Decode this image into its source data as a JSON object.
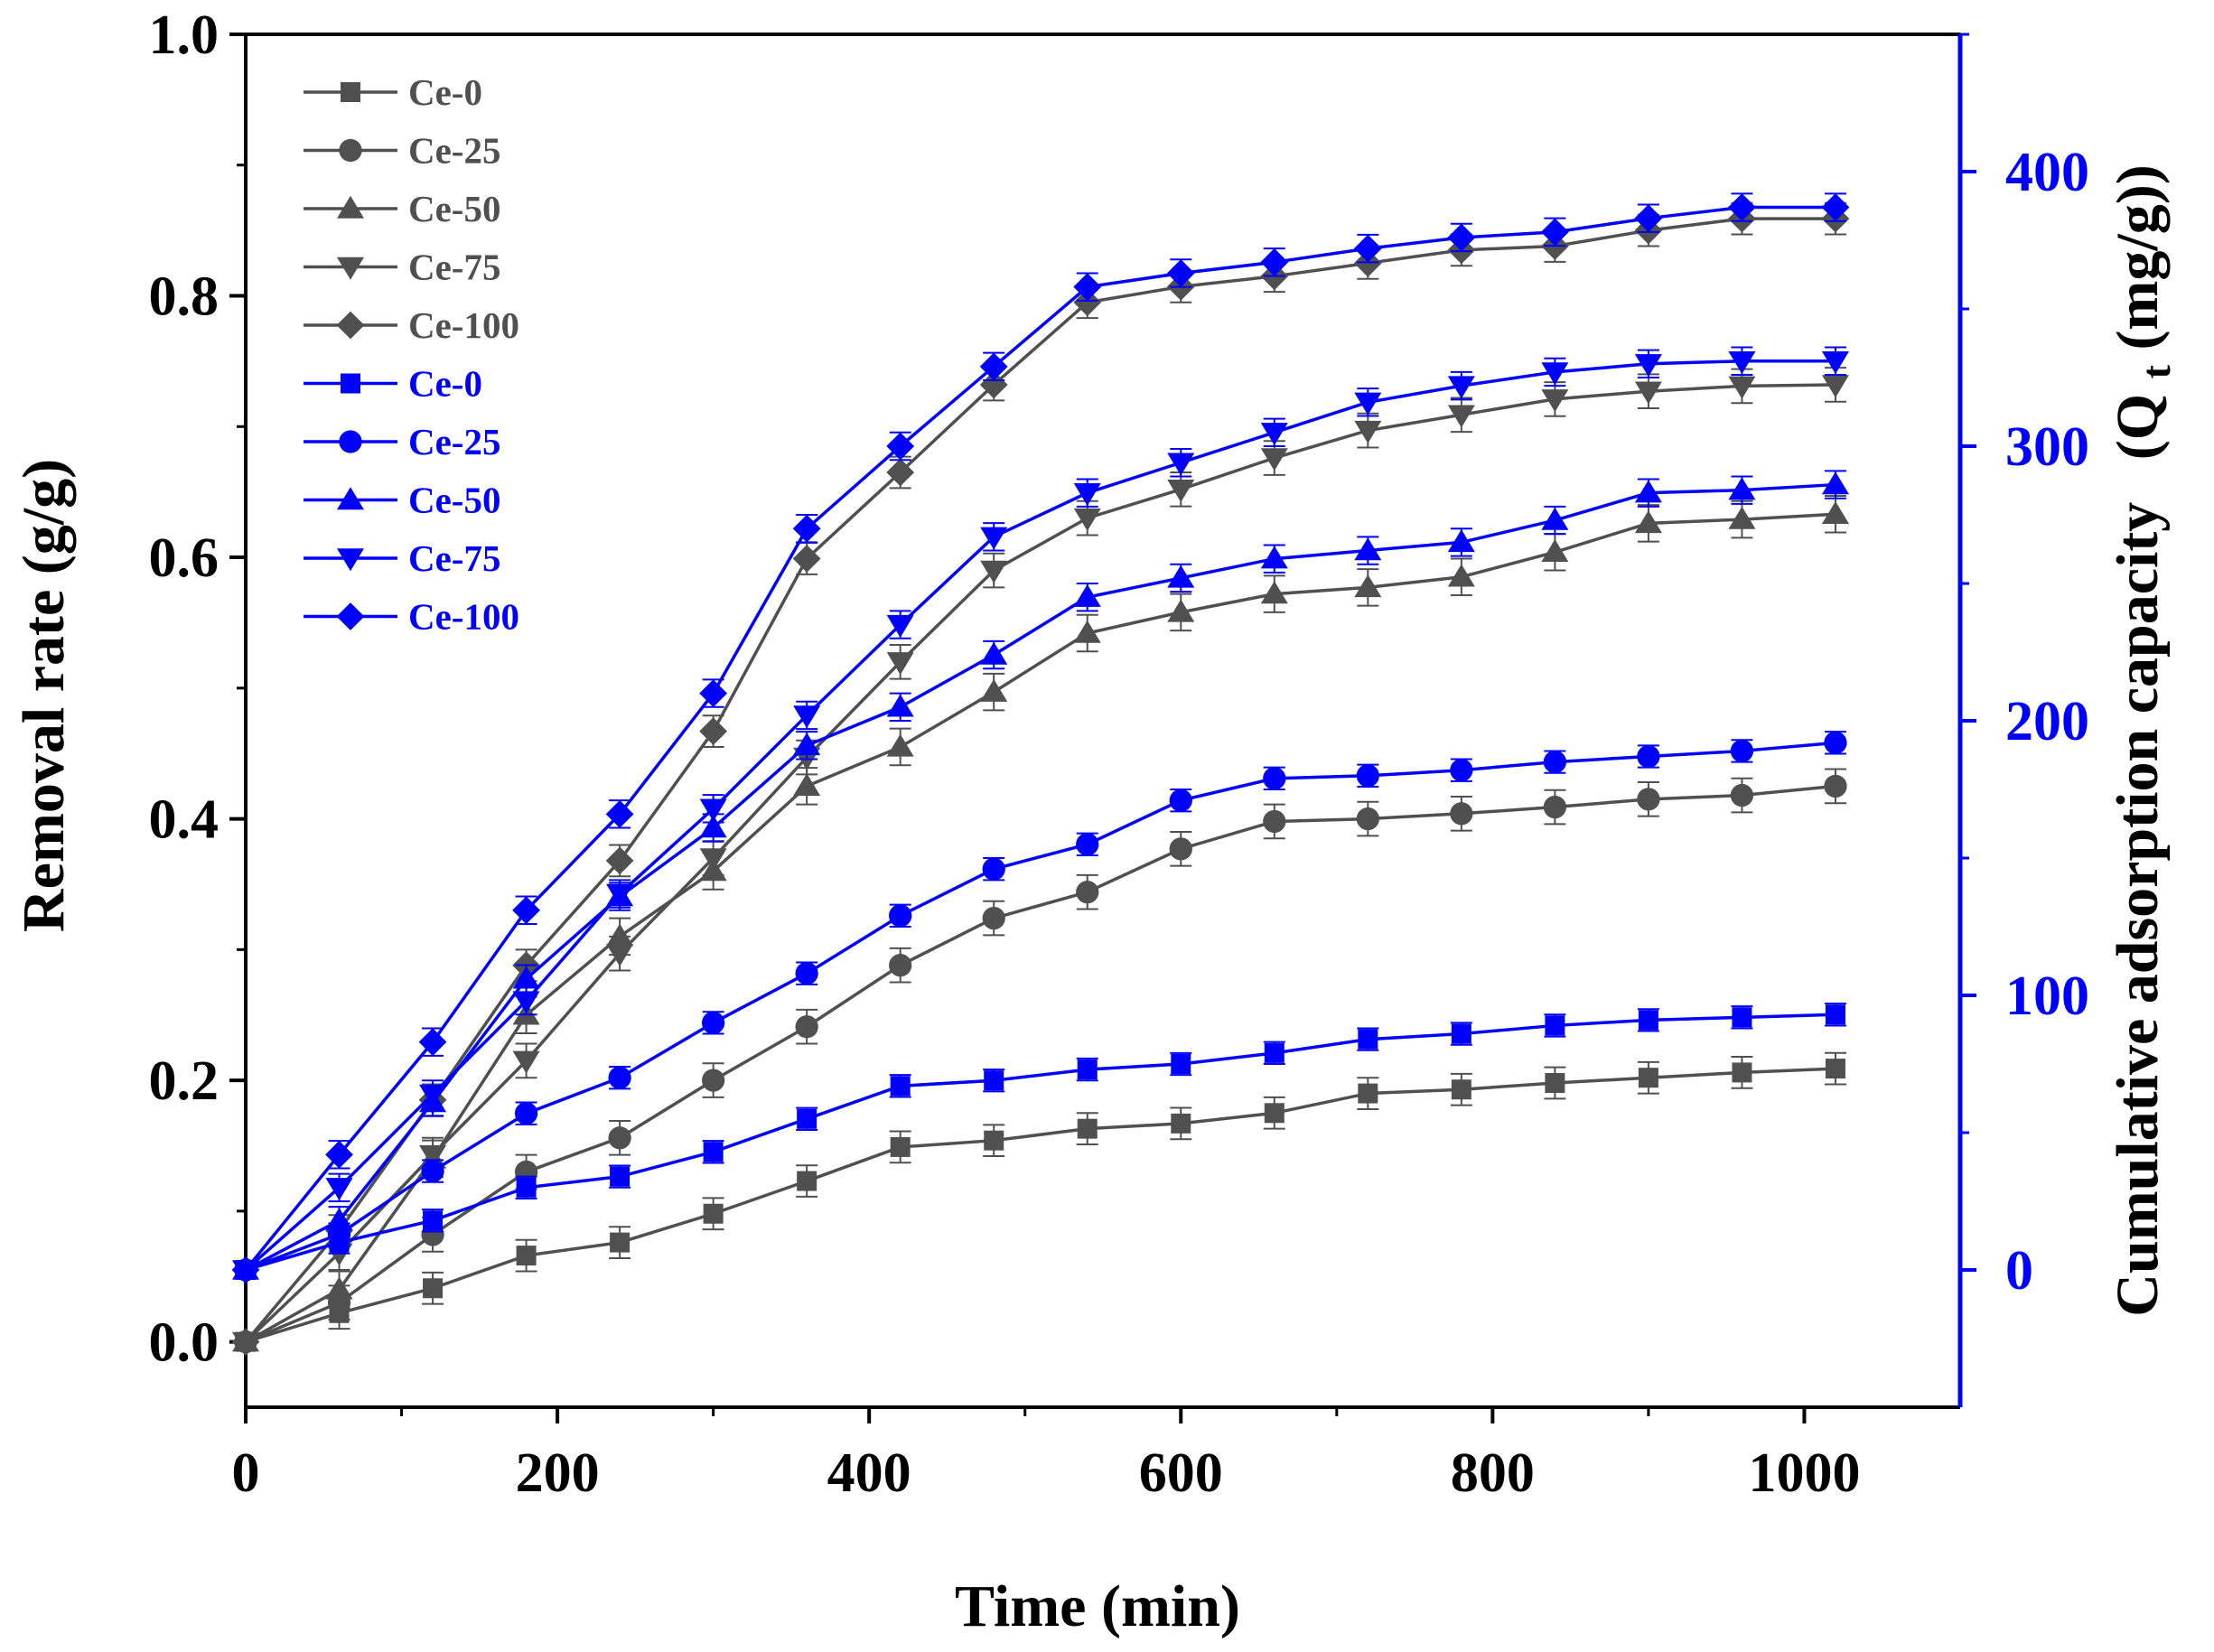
{
  "chart_data": {
    "type": "line",
    "title": "",
    "xlabel": "Time (min)",
    "ylabel_left": "Removal rate (g/g)",
    "ylabel_right_main": "Cumulative adsorption capacity",
    "ylabel_right_paren_open": "(Q",
    "ylabel_right_sub": "t",
    "ylabel_right_rest": "(mg/g))",
    "xlim": [
      0,
      1100
    ],
    "ylim_left": [
      -0.05,
      1.0
    ],
    "ylim_right": [
      -50,
      450
    ],
    "x_ticks": [
      0,
      200,
      400,
      600,
      800,
      1000
    ],
    "x_tick_labels": [
      "0",
      "200",
      "400",
      "600",
      "800",
      "1000"
    ],
    "y_left_ticks": [
      0.0,
      0.2,
      0.4,
      0.6,
      0.8,
      1.0
    ],
    "y_left_tick_labels": [
      "0.0",
      "0.2",
      "0.4",
      "0.6",
      "0.8",
      "1.0"
    ],
    "y_right_ticks": [
      0,
      100,
      200,
      300,
      400
    ],
    "y_right_tick_labels": [
      "0",
      "100",
      "200",
      "300",
      "400"
    ],
    "legend_position": "top-left",
    "x": [
      0,
      60,
      120,
      180,
      240,
      300,
      360,
      420,
      480,
      540,
      600,
      660,
      720,
      780,
      840,
      900,
      960,
      1020
    ],
    "series": [
      {
        "name": "Ce-0",
        "axis": "left",
        "color": "#505050",
        "marker": "square",
        "values": [
          0.0,
          0.022,
          0.041,
          0.066,
          0.076,
          0.098,
          0.123,
          0.149,
          0.154,
          0.163,
          0.167,
          0.175,
          0.19,
          0.193,
          0.198,
          0.202,
          0.206,
          0.209
        ],
        "error": 0.012
      },
      {
        "name": "Ce-25",
        "axis": "left",
        "color": "#505050",
        "marker": "circle",
        "values": [
          0.0,
          0.03,
          0.082,
          0.13,
          0.156,
          0.2,
          0.241,
          0.288,
          0.324,
          0.344,
          0.377,
          0.398,
          0.4,
          0.404,
          0.409,
          0.415,
          0.418,
          0.425
        ],
        "error": 0.013
      },
      {
        "name": "Ce-50",
        "axis": "left",
        "color": "#505050",
        "marker": "triangle-up",
        "values": [
          0.0,
          0.04,
          0.14,
          0.25,
          0.31,
          0.36,
          0.425,
          0.455,
          0.497,
          0.542,
          0.558,
          0.572,
          0.577,
          0.585,
          0.604,
          0.626,
          0.629,
          0.633
        ],
        "error": 0.014
      },
      {
        "name": "Ce-75",
        "axis": "left",
        "color": "#505050",
        "marker": "triangle-down",
        "values": [
          0.0,
          0.068,
          0.143,
          0.215,
          0.297,
          0.37,
          0.447,
          0.52,
          0.59,
          0.63,
          0.652,
          0.676,
          0.697,
          0.709,
          0.721,
          0.727,
          0.731,
          0.732
        ],
        "error": 0.013
      },
      {
        "name": "Ce-100",
        "axis": "left",
        "color": "#505050",
        "marker": "diamond",
        "values": [
          0.0,
          0.085,
          0.185,
          0.288,
          0.368,
          0.467,
          0.599,
          0.665,
          0.732,
          0.795,
          0.807,
          0.815,
          0.825,
          0.835,
          0.838,
          0.85,
          0.859,
          0.859
        ],
        "error": 0.012
      },
      {
        "name": "Ce-0",
        "axis": "right",
        "color": "#0000ff",
        "marker": "square",
        "values": [
          0,
          10,
          18,
          30,
          34,
          43,
          55,
          67,
          69,
          73,
          75,
          79,
          84,
          86,
          89,
          91,
          92,
          93
        ],
        "error": 4
      },
      {
        "name": "Ce-25",
        "axis": "right",
        "color": "#0000ff",
        "marker": "circle",
        "values": [
          0,
          13,
          36,
          57,
          70,
          90,
          108,
          129,
          146,
          155,
          171,
          179,
          180,
          182,
          185,
          187,
          189,
          192
        ],
        "error": 4
      },
      {
        "name": "Ce-50",
        "axis": "right",
        "color": "#0000ff",
        "marker": "triangle-up",
        "values": [
          0,
          18,
          61,
          106,
          136,
          161,
          191,
          205,
          224,
          245,
          252,
          259,
          262,
          265,
          273,
          283,
          284,
          286
        ],
        "error": 5
      },
      {
        "name": "Ce-75",
        "axis": "right",
        "color": "#0000ff",
        "marker": "triangle-down",
        "values": [
          0,
          30,
          64,
          98,
          137,
          168,
          202,
          235,
          267,
          283,
          294,
          305,
          316,
          322,
          327,
          330,
          331,
          331
        ],
        "error": 5
      },
      {
        "name": "Ce-100",
        "axis": "right",
        "color": "#0000ff",
        "marker": "diamond",
        "values": [
          0,
          42,
          83,
          131,
          166,
          210,
          270,
          300,
          329,
          358,
          363,
          367,
          372,
          376,
          378,
          383,
          387,
          387
        ],
        "error": 5
      }
    ]
  }
}
